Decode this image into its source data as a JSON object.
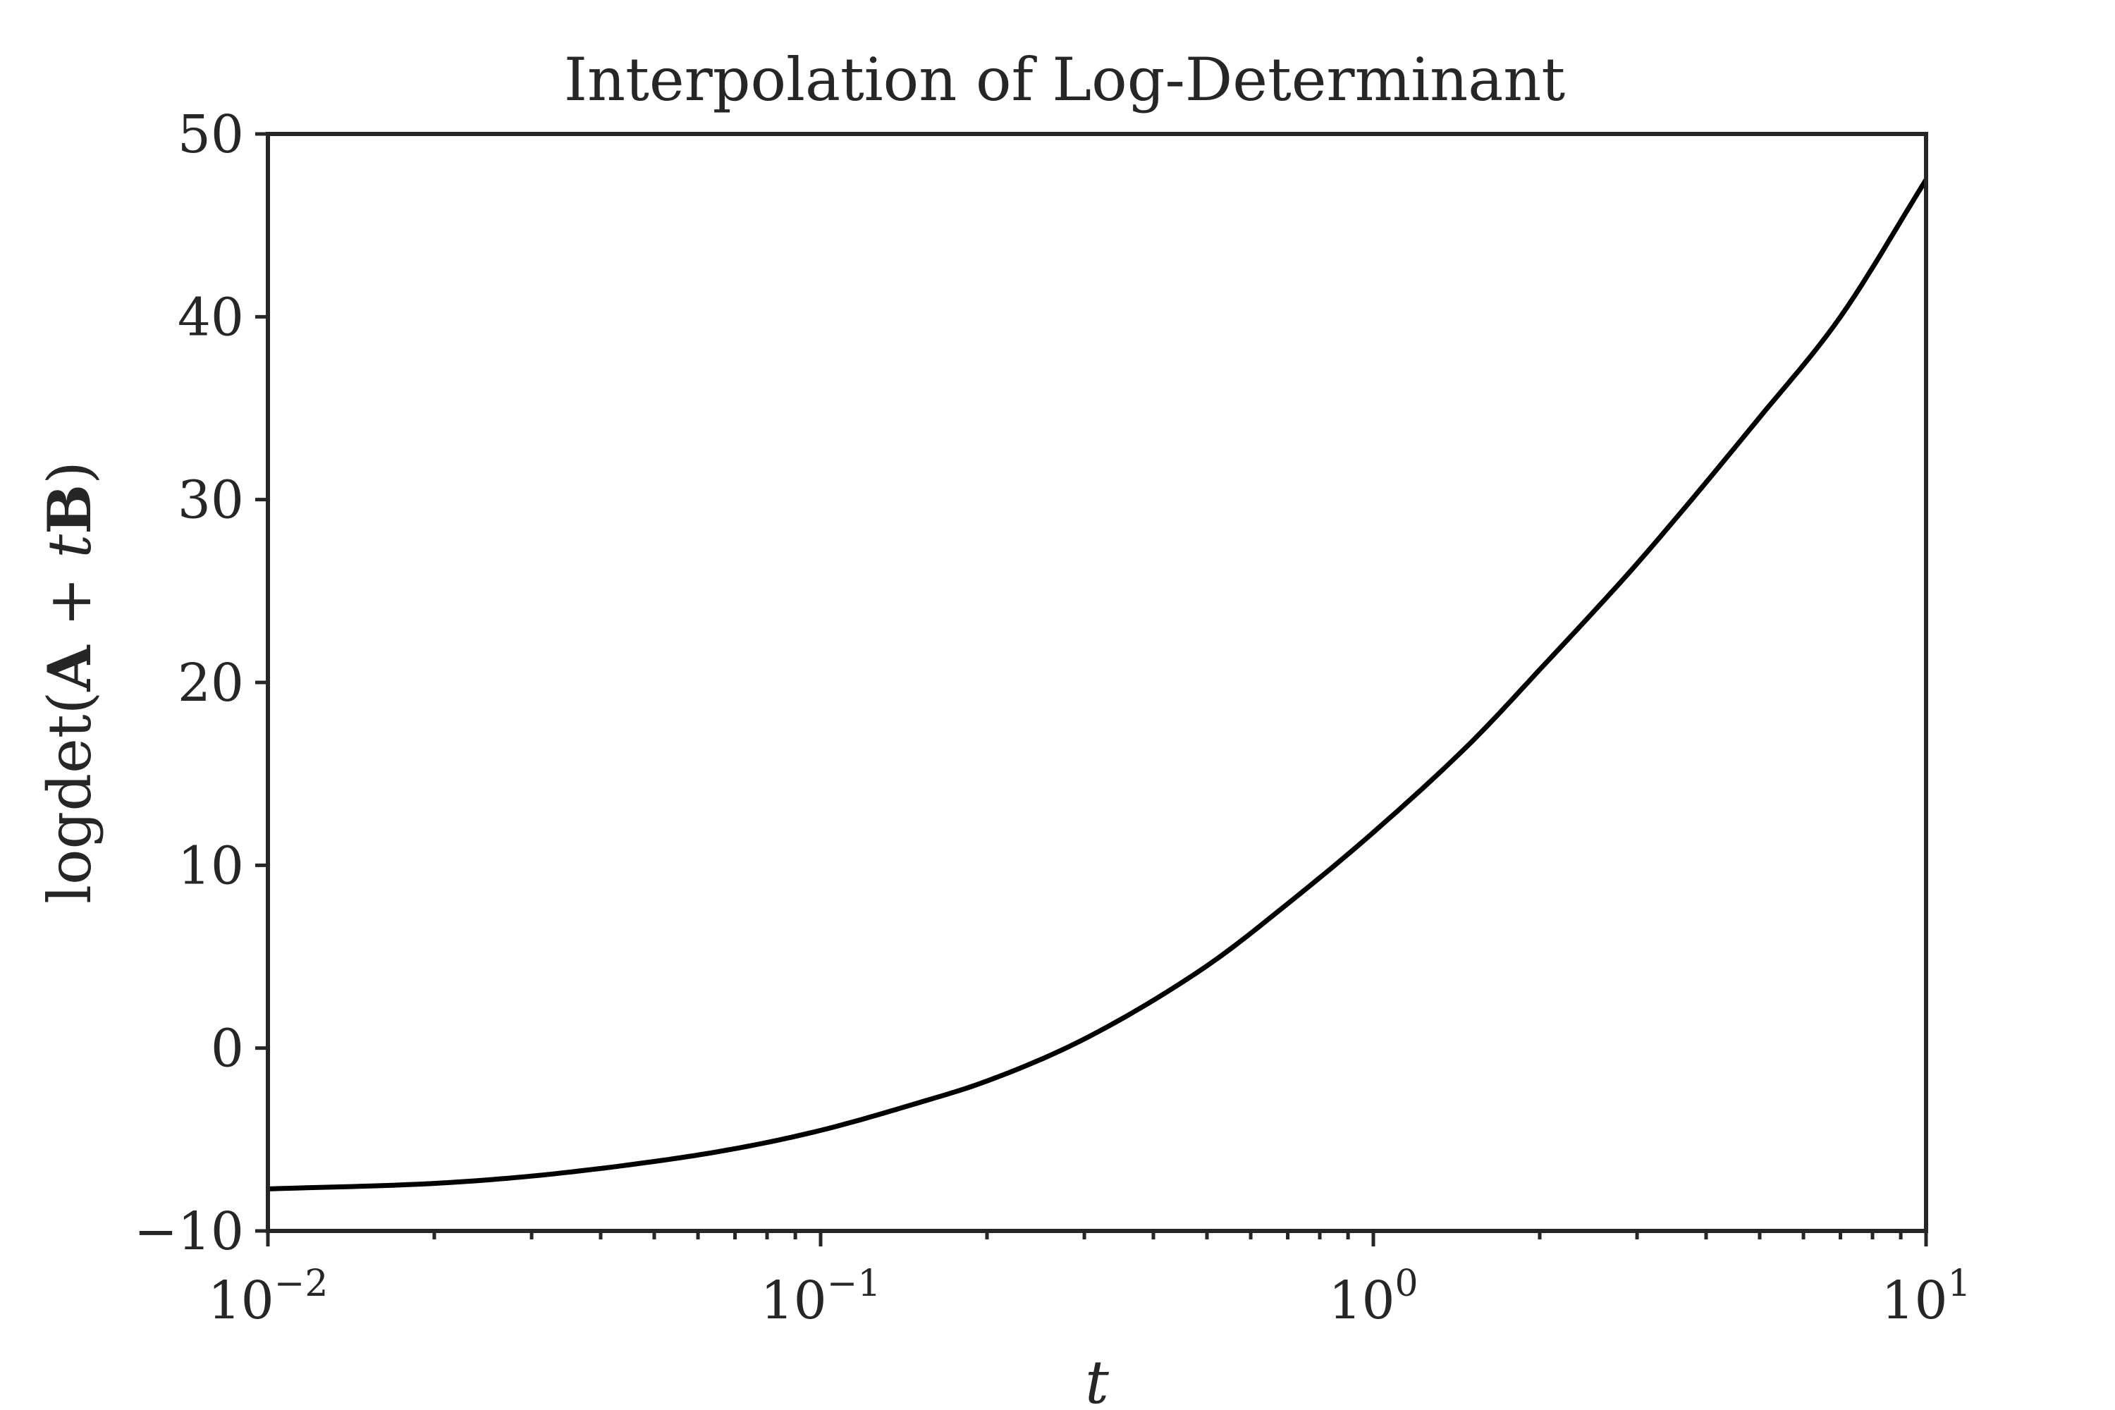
{
  "chart_data": {
    "type": "line",
    "title": "Interpolation of Log-Determinant",
    "xlabel": "t",
    "ylabel": {
      "prefix": "logdet(",
      "a": "A",
      "plus": " + ",
      "t": "t",
      "b": "B",
      "suffix": ")"
    },
    "xscale": "log",
    "xlim": [
      0.01,
      10
    ],
    "ylim": [
      -10,
      50
    ],
    "grid": false,
    "x_ticks": [
      {
        "base": "10",
        "exp": "−2",
        "value": 0.01
      },
      {
        "base": "10",
        "exp": "−1",
        "value": 0.1
      },
      {
        "base": "10",
        "exp": "0",
        "value": 1
      },
      {
        "base": "10",
        "exp": "1",
        "value": 10
      }
    ],
    "y_ticks": [
      {
        "label": "−10",
        "value": -10
      },
      {
        "label": "0",
        "value": 0
      },
      {
        "label": "10",
        "value": 10
      },
      {
        "label": "20",
        "value": 20
      },
      {
        "label": "30",
        "value": 30
      },
      {
        "label": "40",
        "value": 40
      },
      {
        "label": "50",
        "value": 50
      }
    ],
    "series": [
      {
        "color": "#000000",
        "x": [
          0.01,
          0.02,
          0.03,
          0.05,
          0.07,
          0.1,
          0.15,
          0.2,
          0.3,
          0.5,
          0.7,
          1.0,
          1.5,
          2.0,
          3.0,
          5.0,
          7.0,
          10.0
        ],
        "y": [
          -7.7,
          -7.4,
          -7.0,
          -6.2,
          -5.5,
          -4.5,
          -3.0,
          -1.8,
          0.5,
          4.5,
          7.9,
          11.8,
          16.7,
          20.7,
          26.5,
          34.5,
          40.0,
          47.5
        ]
      }
    ]
  }
}
